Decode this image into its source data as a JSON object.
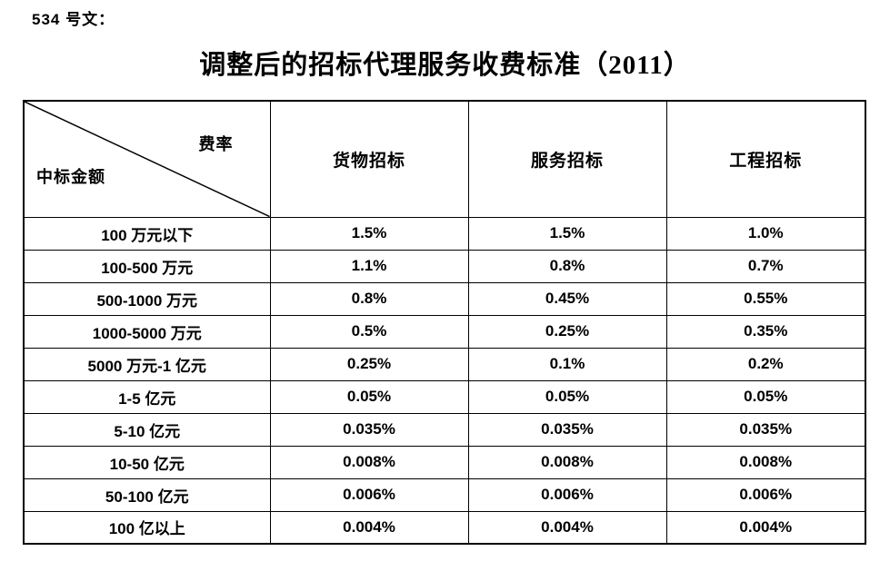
{
  "doc_label": "534 号文：",
  "title": "调整后的招标代理服务收费标准（2011）",
  "table": {
    "corner": {
      "top_right": "费率",
      "bottom_left": "中标金额"
    },
    "columns": [
      "货物招标",
      "服务招标",
      "工程招标"
    ],
    "rows": [
      {
        "range": "100 万元以下",
        "values": [
          "1.5%",
          "1.5%",
          "1.0%"
        ]
      },
      {
        "range": "100-500 万元",
        "values": [
          "1.1%",
          "0.8%",
          "0.7%"
        ]
      },
      {
        "range": "500-1000 万元",
        "values": [
          "0.8%",
          "0.45%",
          "0.55%"
        ]
      },
      {
        "range": "1000-5000 万元",
        "values": [
          "0.5%",
          "0.25%",
          "0.35%"
        ]
      },
      {
        "range": "5000 万元-1 亿元",
        "values": [
          "0.25%",
          "0.1%",
          "0.2%"
        ]
      },
      {
        "range": "1-5 亿元",
        "values": [
          "0.05%",
          "0.05%",
          "0.05%"
        ]
      },
      {
        "range": "5-10 亿元",
        "values": [
          "0.035%",
          "0.035%",
          "0.035%"
        ]
      },
      {
        "range": "10-50 亿元",
        "values": [
          "0.008%",
          "0.008%",
          "0.008%"
        ]
      },
      {
        "range": "50-100 亿元",
        "values": [
          "0.006%",
          "0.006%",
          "0.006%"
        ]
      },
      {
        "range": "100 亿以上",
        "values": [
          "0.004%",
          "0.004%",
          "0.004%"
        ]
      }
    ]
  },
  "colors": {
    "text": "#000000",
    "border": "#000000",
    "background": "#ffffff"
  }
}
